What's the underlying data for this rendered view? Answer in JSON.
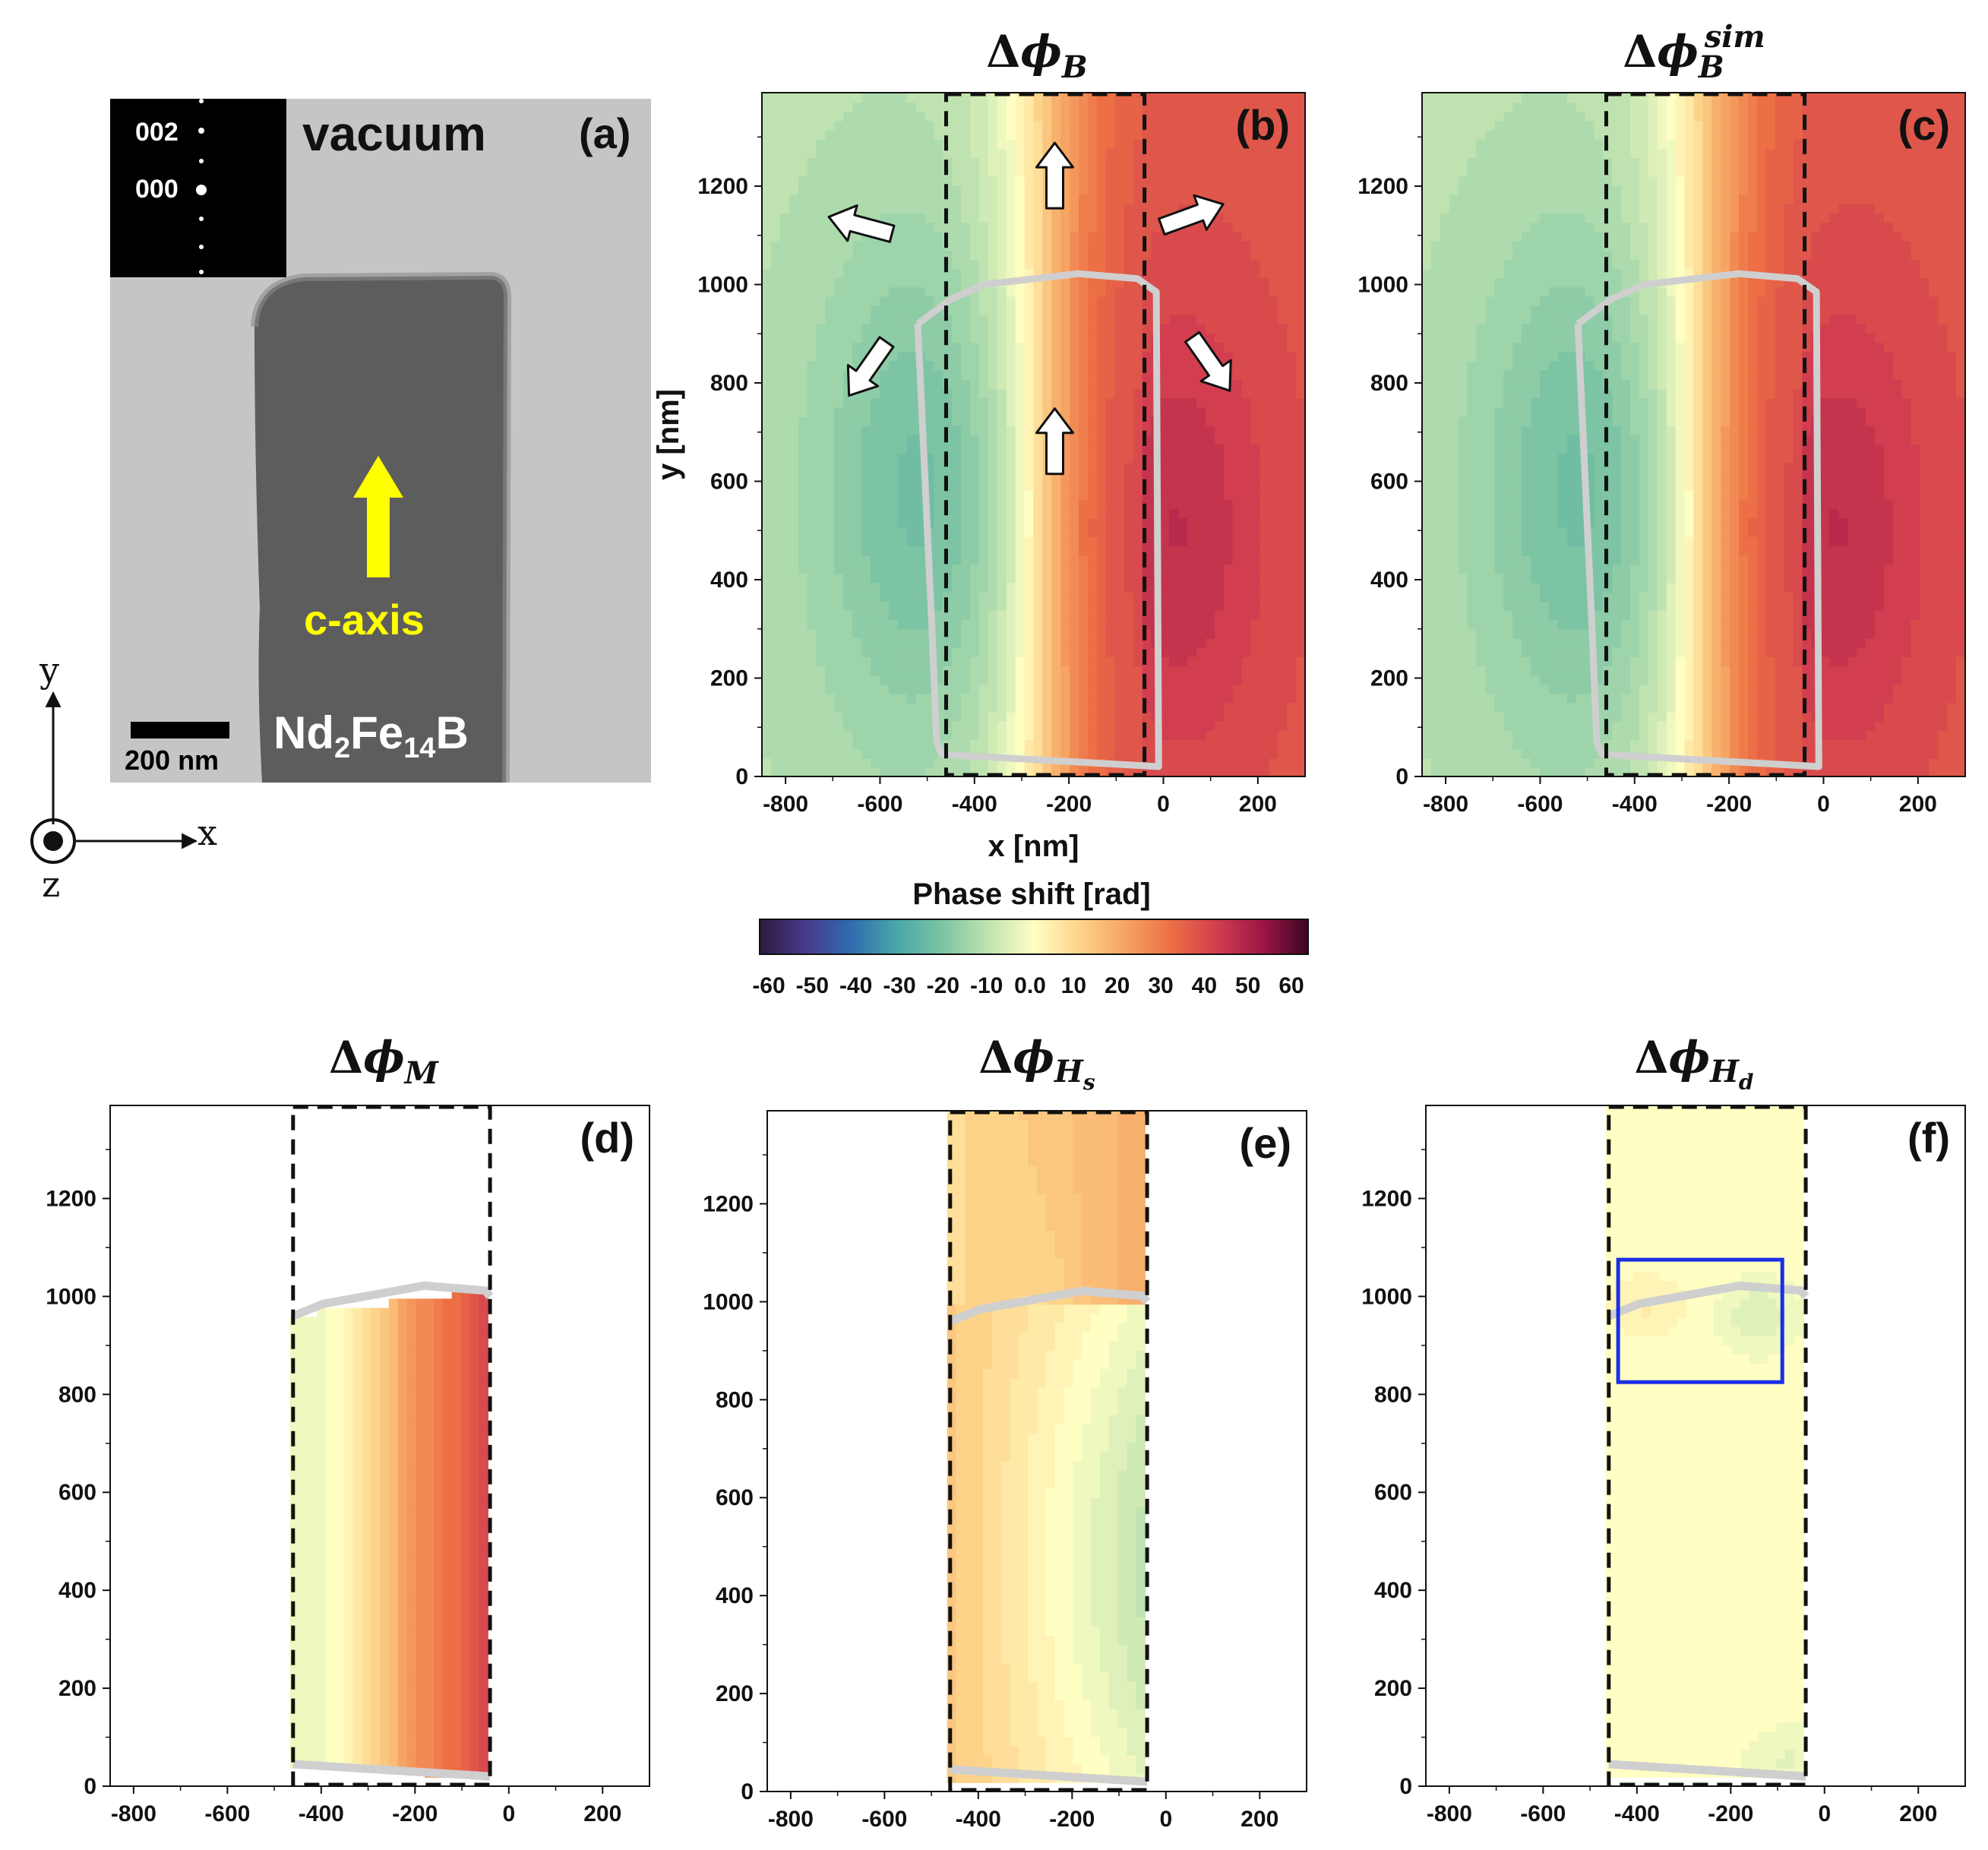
{
  "colors": {
    "yellow_arrow": "#ffff00",
    "outline_gray": "#cfcfcf",
    "roi_blue": "#1a2ee6",
    "colormap": [
      "#2b1b3d",
      "#4a3a8c",
      "#2f6bb0",
      "#4aa7a8",
      "#7cc4a3",
      "#bfe3b0",
      "#ffffc4",
      "#fdd38a",
      "#f6a463",
      "#ec6f45",
      "#d23e4f",
      "#9c1646",
      "#3d0623"
    ]
  },
  "panel_a": {
    "label": "(a)",
    "vacuum_label": "vacuum",
    "diffraction_spot_labels": [
      "002",
      "000"
    ],
    "caxis_label": "c-axis",
    "material_parts": [
      "Nd",
      "2",
      "Fe",
      "14",
      "B"
    ],
    "scalebar_label": "200 nm"
  },
  "coordinate_axes": {
    "x": "x",
    "y": "y",
    "z": "z"
  },
  "colorbar": {
    "title": "Phase shift [rad]",
    "tick_labels": [
      "-60",
      "-50",
      "-40",
      "-30",
      "-20",
      "-10",
      "0.0",
      "10",
      "20",
      "30",
      "40",
      "50",
      "60"
    ]
  },
  "chart_data": [
    {
      "id": "b",
      "type": "heatmap",
      "label": "(b)",
      "title_parts": [
        "Δ",
        "ϕ",
        "B",
        ""
      ],
      "xlabel": "x [nm]",
      "ylabel": "y [nm]",
      "xlim": [
        -850,
        300
      ],
      "ylim": [
        0,
        1390
      ],
      "xticks": [
        -800,
        -600,
        -400,
        -200,
        0,
        200
      ],
      "yticks": [
        0,
        200,
        400,
        600,
        800,
        1000,
        1200
      ],
      "roi_x": [
        -460,
        -40
      ],
      "field": "full",
      "value_range": [
        -20,
        45
      ],
      "arrows": [
        "up",
        "up",
        "upper-left",
        "upper-right",
        "lower-left",
        "lower-right"
      ]
    },
    {
      "id": "c",
      "type": "heatmap",
      "label": "(c)",
      "title_parts": [
        "Δ",
        "ϕ",
        "B",
        "sim"
      ],
      "xlim": [
        -850,
        300
      ],
      "ylim": [
        0,
        1390
      ],
      "xticks": [
        -800,
        -600,
        -400,
        -200,
        0,
        200
      ],
      "yticks": [
        0,
        200,
        400,
        600,
        800,
        1000,
        1200
      ],
      "roi_x": [
        -460,
        -40
      ],
      "field": "full",
      "value_range": [
        -20,
        45
      ]
    },
    {
      "id": "d",
      "type": "heatmap",
      "label": "(d)",
      "title_parts": [
        "Δ",
        "ϕ",
        "M",
        ""
      ],
      "xlim": [
        -850,
        300
      ],
      "ylim": [
        0,
        1390
      ],
      "xticks": [
        -800,
        -600,
        -400,
        -200,
        0,
        200
      ],
      "yticks": [
        0,
        200,
        400,
        600,
        800,
        1000,
        1200
      ],
      "roi_x": [
        -460,
        -40
      ],
      "field": "magnetization",
      "value_range": [
        -20,
        50
      ]
    },
    {
      "id": "e",
      "type": "heatmap",
      "label": "(e)",
      "title_parts": [
        "Δ",
        "ϕ",
        "H",
        "s"
      ],
      "xlim": [
        -850,
        300
      ],
      "ylim": [
        0,
        1390
      ],
      "xticks": [
        -800,
        -600,
        -400,
        -200,
        0,
        200
      ],
      "yticks": [
        0,
        200,
        400,
        600,
        800,
        1000,
        1200
      ],
      "roi_x": [
        -460,
        -40
      ],
      "field": "stray",
      "value_range": [
        -15,
        25
      ]
    },
    {
      "id": "f",
      "type": "heatmap",
      "label": "(f)",
      "title_parts": [
        "Δ",
        "ϕ",
        "H",
        "d"
      ],
      "xlim": [
        -850,
        300
      ],
      "ylim": [
        0,
        1390
      ],
      "xticks": [
        -800,
        -600,
        -400,
        -200,
        0,
        200
      ],
      "yticks": [
        0,
        200,
        400,
        600,
        800,
        1000,
        1200
      ],
      "roi_x": [
        -460,
        -40
      ],
      "field": "demag",
      "value_range": [
        -5,
        5
      ],
      "blue_box": {
        "x": [
          -440,
          -90
        ],
        "y": [
          825,
          1075
        ]
      }
    }
  ]
}
